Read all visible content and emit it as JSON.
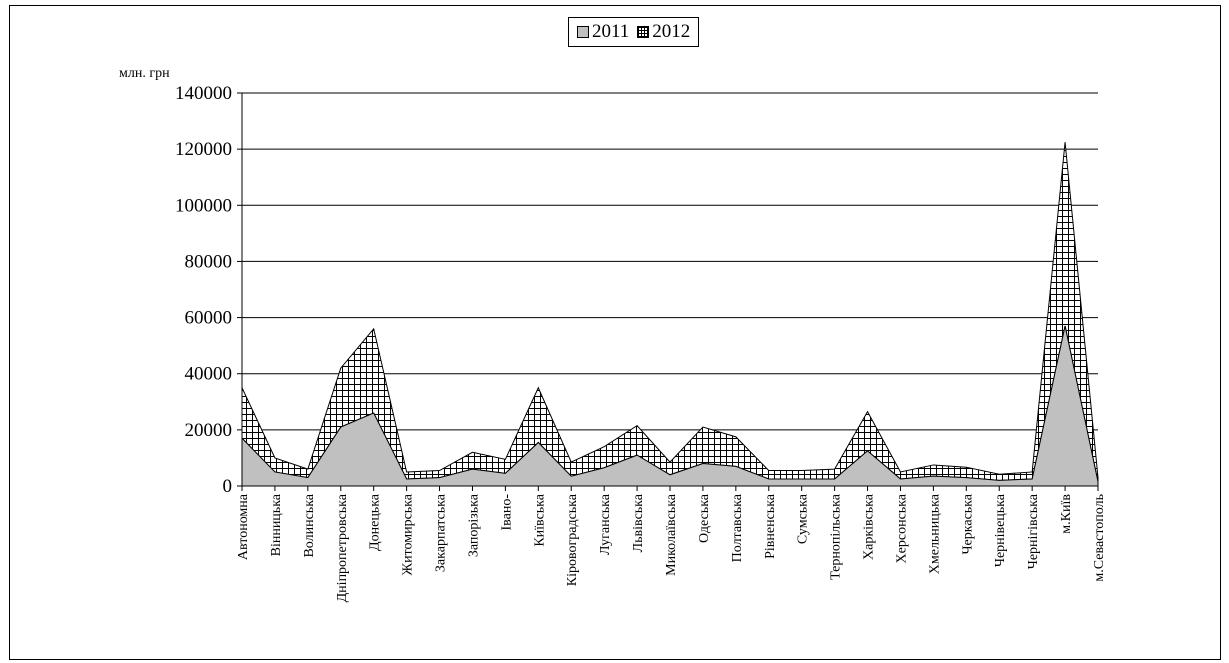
{
  "chart_data": {
    "type": "area",
    "stacked": true,
    "title": "",
    "xlabel": "",
    "ylabel": "млн. грн",
    "ylim": [
      0,
      140000
    ],
    "yticks": [
      0,
      20000,
      40000,
      60000,
      80000,
      100000,
      120000,
      140000
    ],
    "grid": true,
    "legend_position": "top-center",
    "categories": [
      "Автономна",
      "Вінницька",
      "Волинська",
      "Дніпропетровська",
      "Донецька",
      "Житомирська",
      "Закарпатська",
      "Запорізька",
      "Івано-",
      "Київська",
      "Кіровоградська",
      "Луганська",
      "Львівська",
      "Миколаївська",
      "Одеська",
      "Полтавська",
      "Рівненська",
      "Сумська",
      "Тернопільська",
      "Харківська",
      "Херсонська",
      "Хмельницька",
      "Черкаська",
      "Чернівецька",
      "Чернігівська",
      "м.Київ",
      "м.Севастополь"
    ],
    "series": [
      {
        "name": "2011",
        "fill": "#c0c0c0",
        "values": [
          17000,
          5000,
          3000,
          21000,
          26000,
          2500,
          3000,
          6000,
          4500,
          15500,
          3500,
          6500,
          11000,
          4000,
          8000,
          7000,
          2500,
          2500,
          2500,
          12500,
          2500,
          3500,
          3000,
          2000,
          2500,
          57000,
          1500
        ]
      },
      {
        "name": "2012",
        "fill": "#ffffff",
        "pattern": "grid",
        "values": [
          18000,
          5000,
          3000,
          21000,
          30000,
          2500,
          2500,
          6000,
          5000,
          19500,
          5000,
          7500,
          10500,
          4500,
          13000,
          10500,
          3000,
          3000,
          3500,
          14000,
          2500,
          4000,
          3700,
          2200,
          2500,
          65500,
          1500
        ]
      }
    ]
  }
}
